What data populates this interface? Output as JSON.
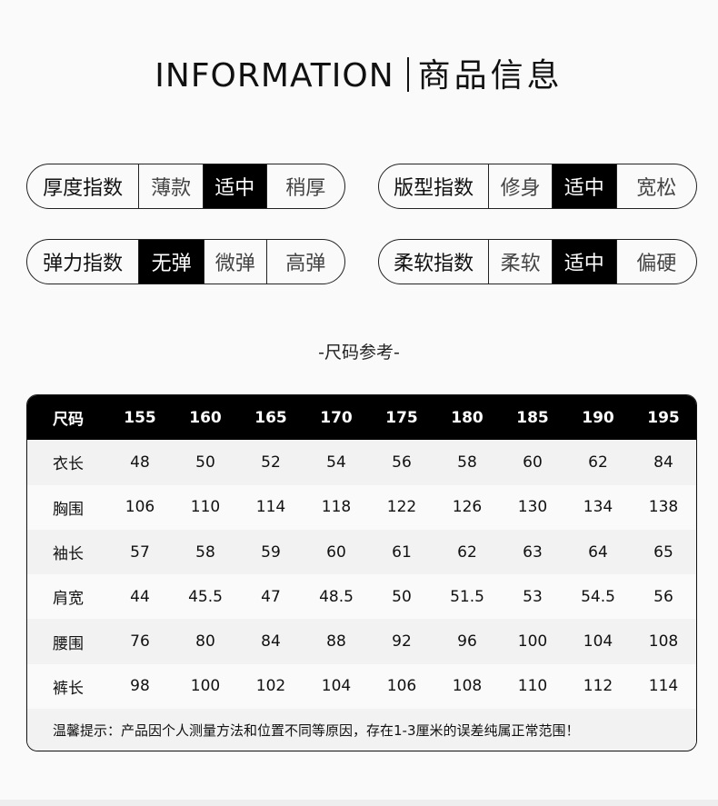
{
  "header": {
    "en": "INFORMATION",
    "cn": "商品信息"
  },
  "indices": [
    {
      "label": "厚度指数",
      "options": [
        "薄款",
        "适中",
        "稍厚"
      ],
      "selected": 1
    },
    {
      "label": "版型指数",
      "options": [
        "修身",
        "适中",
        "宽松"
      ],
      "selected": 1
    },
    {
      "label": "弹力指数",
      "options": [
        "无弹",
        "微弹",
        "高弹"
      ],
      "selected": 0
    },
    {
      "label": "柔软指数",
      "options": [
        "柔软",
        "适中",
        "偏硬"
      ],
      "selected": 1
    }
  ],
  "size_title": "-尺码参考-",
  "table": {
    "header": [
      "尺码",
      "155",
      "160",
      "165",
      "170",
      "175",
      "180",
      "185",
      "190",
      "195"
    ],
    "rows": [
      [
        "衣长",
        "48",
        "50",
        "52",
        "54",
        "56",
        "58",
        "60",
        "62",
        "84"
      ],
      [
        "胸围",
        "106",
        "110",
        "114",
        "118",
        "122",
        "126",
        "130",
        "134",
        "138"
      ],
      [
        "袖长",
        "57",
        "58",
        "59",
        "60",
        "61",
        "62",
        "63",
        "64",
        "65"
      ],
      [
        "肩宽",
        "44",
        "45.5",
        "47",
        "48.5",
        "50",
        "51.5",
        "53",
        "54.5",
        "56"
      ],
      [
        "腰围",
        "76",
        "80",
        "84",
        "88",
        "92",
        "96",
        "100",
        "104",
        "108"
      ],
      [
        "裤长",
        "98",
        "100",
        "102",
        "104",
        "106",
        "108",
        "110",
        "112",
        "114"
      ]
    ],
    "note": "温馨提示：产品因个人测量方法和位置不同等原因，存在1-3厘米的误差纯属正常范围！"
  }
}
